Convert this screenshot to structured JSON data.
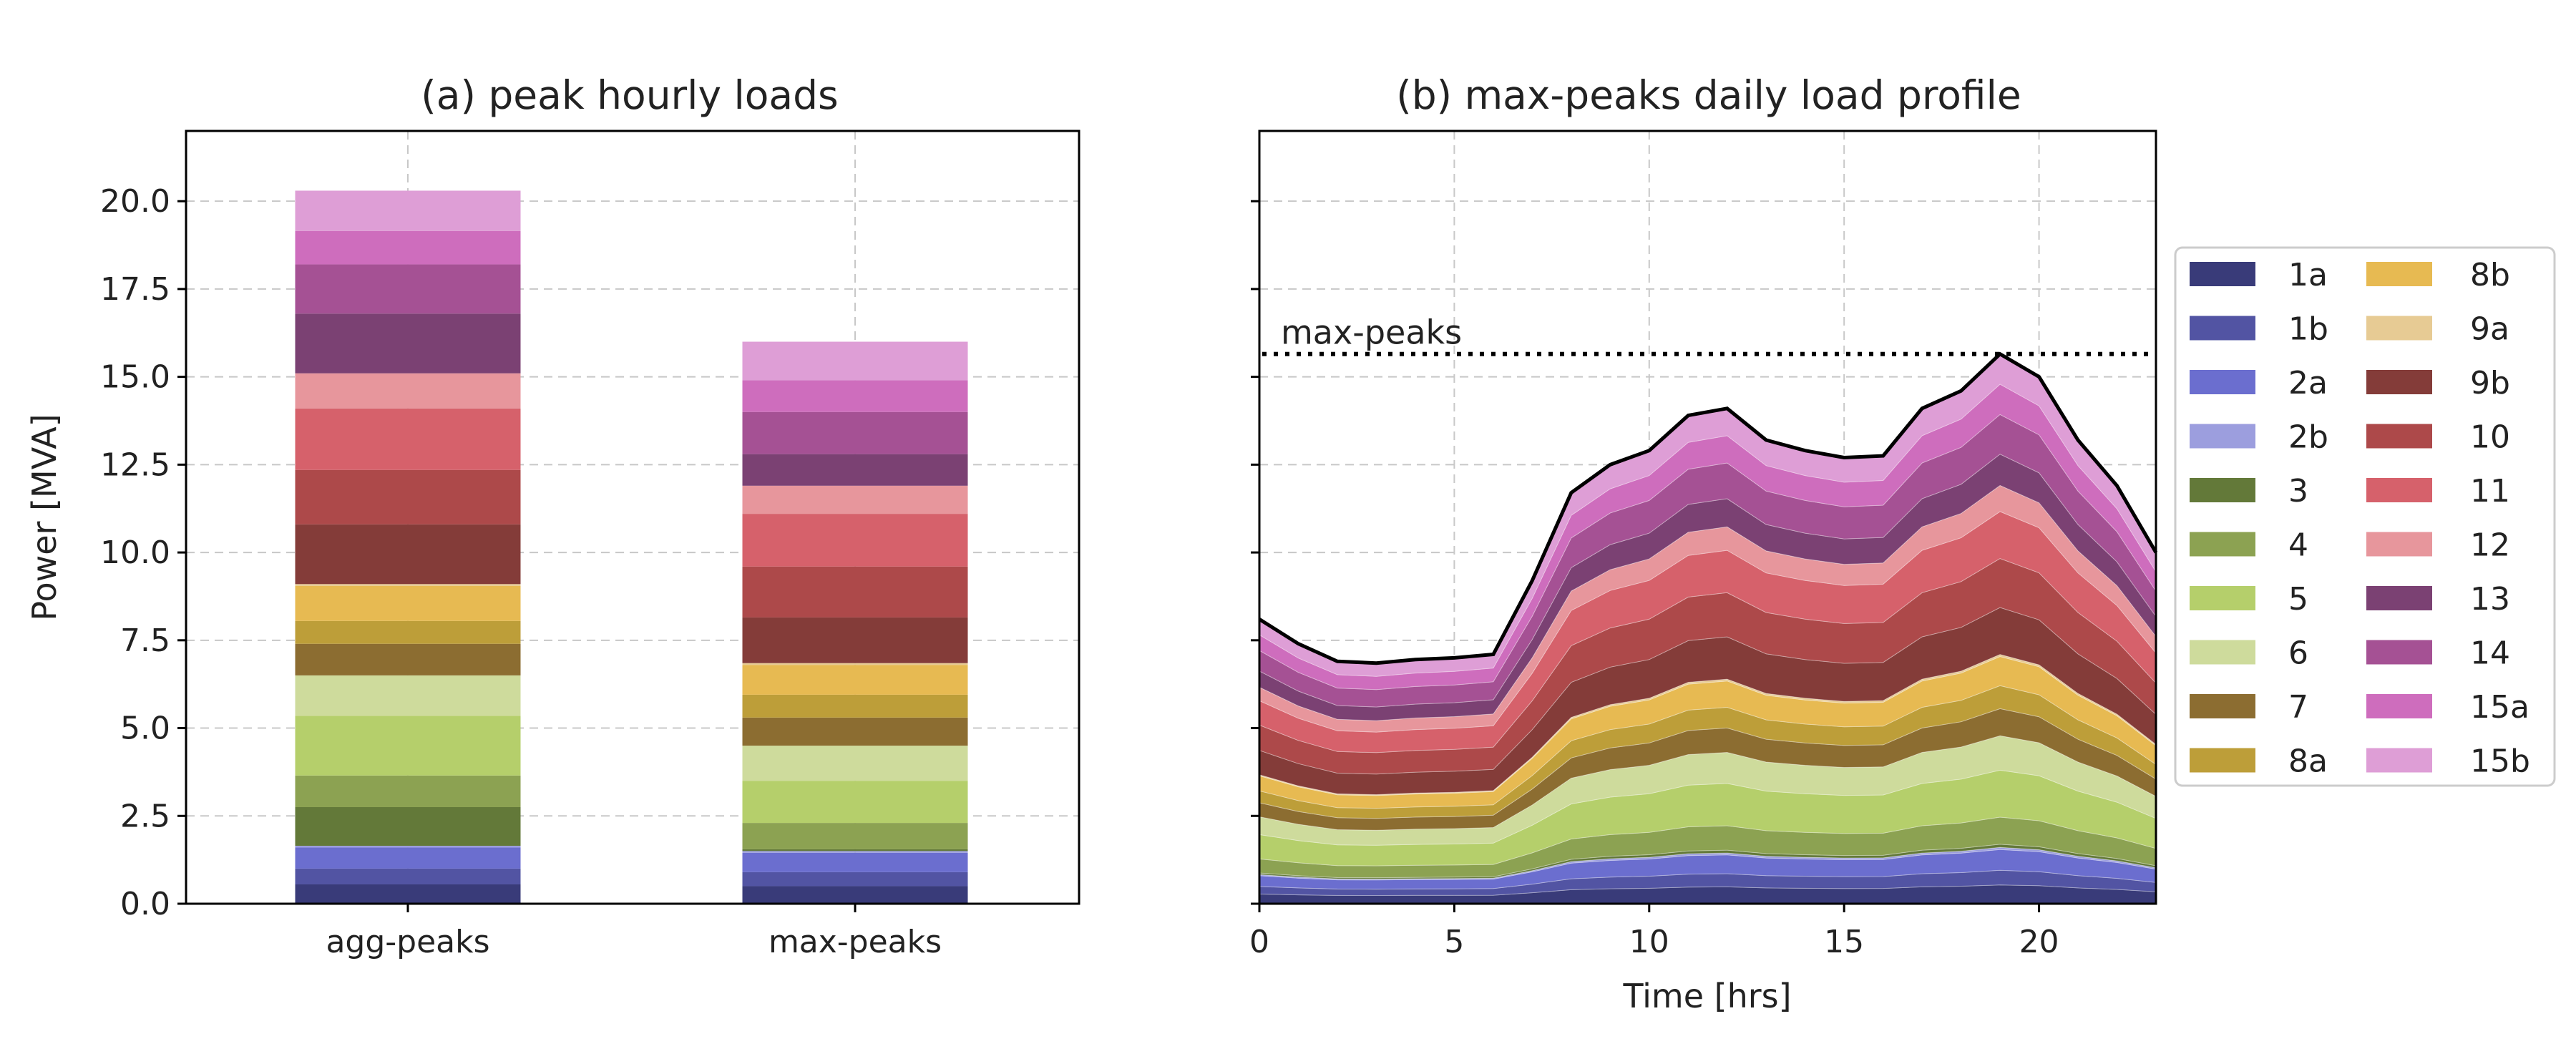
{
  "chart_data": [
    {
      "type": "bar",
      "stacked": true,
      "title": "(a) peak hourly loads",
      "xlabel": "",
      "ylabel": "Power [MVA]",
      "ylim": [
        0,
        22
      ],
      "yticks": [
        "0.0",
        "2.5",
        "5.0",
        "7.5",
        "10.0",
        "12.5",
        "15.0",
        "17.5",
        "20.0"
      ],
      "grid": true,
      "categories": [
        "agg-peaks",
        "max-peaks"
      ],
      "series": [
        {
          "name": "1a",
          "values": [
            0.55,
            0.5
          ]
        },
        {
          "name": "1b",
          "values": [
            0.45,
            0.4
          ]
        },
        {
          "name": "2a",
          "values": [
            0.6,
            0.55
          ]
        },
        {
          "name": "2b",
          "values": [
            0.05,
            0.05
          ]
        },
        {
          "name": "3",
          "values": [
            1.1,
            0.05
          ]
        },
        {
          "name": "4",
          "values": [
            0.9,
            0.75
          ]
        },
        {
          "name": "5",
          "values": [
            1.7,
            1.2
          ]
        },
        {
          "name": "6",
          "values": [
            1.15,
            1.0
          ]
        },
        {
          "name": "7",
          "values": [
            0.9,
            0.8
          ]
        },
        {
          "name": "8a",
          "values": [
            0.65,
            0.65
          ]
        },
        {
          "name": "8b",
          "values": [
            1.0,
            0.85
          ]
        },
        {
          "name": "9a",
          "values": [
            0.05,
            0.05
          ]
        },
        {
          "name": "9b",
          "values": [
            1.7,
            1.3
          ]
        },
        {
          "name": "10",
          "values": [
            1.55,
            1.45
          ]
        },
        {
          "name": "11",
          "values": [
            1.75,
            1.5
          ]
        },
        {
          "name": "12",
          "values": [
            1.0,
            0.8
          ]
        },
        {
          "name": "13",
          "values": [
            1.7,
            0.9
          ]
        },
        {
          "name": "14",
          "values": [
            1.4,
            1.2
          ]
        },
        {
          "name": "15a",
          "values": [
            0.95,
            0.9
          ]
        },
        {
          "name": "15b",
          "values": [
            1.15,
            1.1
          ]
        }
      ]
    },
    {
      "type": "area",
      "stacked": true,
      "title": "(b) max-peaks daily load profile",
      "xlabel": "Time [hrs]",
      "ylabel": "",
      "xlim": [
        0,
        23
      ],
      "ylim": [
        0,
        22
      ],
      "xticks": [
        "0",
        "5",
        "10",
        "15",
        "20"
      ],
      "grid": true,
      "x": [
        0,
        1,
        2,
        3,
        4,
        5,
        6,
        7,
        8,
        9,
        10,
        11,
        12,
        13,
        14,
        15,
        16,
        17,
        18,
        19,
        20,
        21,
        22,
        23
      ],
      "total": [
        8.1,
        7.4,
        6.9,
        6.85,
        6.95,
        7.0,
        7.1,
        9.2,
        11.7,
        12.5,
        12.9,
        13.9,
        14.1,
        13.2,
        12.9,
        12.7,
        12.75,
        14.1,
        14.6,
        15.65,
        15.0,
        13.2,
        11.9,
        10.0
      ],
      "max_peaks_value": 15.65,
      "max_peaks_label": "max-peaks",
      "legend": {
        "placement": "right-outside",
        "entries": [
          "1a",
          "1b",
          "2a",
          "2b",
          "3",
          "4",
          "5",
          "6",
          "7",
          "8a",
          "8b",
          "9a",
          "9b",
          "10",
          "11",
          "12",
          "13",
          "14",
          "15a",
          "15b"
        ]
      },
      "shares": [
        0.036,
        0.028,
        0.04,
        0.004,
        0.006,
        0.052,
        0.09,
        0.066,
        0.052,
        0.044,
        0.056,
        0.004,
        0.09,
        0.094,
        0.09,
        0.05,
        0.06,
        0.076,
        0.058,
        0.058
      ]
    }
  ],
  "colors": {
    "1a": "#393b79",
    "1b": "#5254a3",
    "2a": "#6b6ecf",
    "2b": "#9c9ede",
    "3": "#637939",
    "4": "#8ca252",
    "5": "#b5cf6b",
    "6": "#cedb9c",
    "7": "#8c6d31",
    "8a": "#bd9e39",
    "8b": "#e7ba52",
    "9a": "#e7cb94",
    "9b": "#843c39",
    "10": "#ad494a",
    "11": "#d6616b",
    "12": "#e7969c",
    "13": "#7b4173",
    "14": "#a55194",
    "15a": "#ce6dbd",
    "15b": "#de9ed6"
  }
}
